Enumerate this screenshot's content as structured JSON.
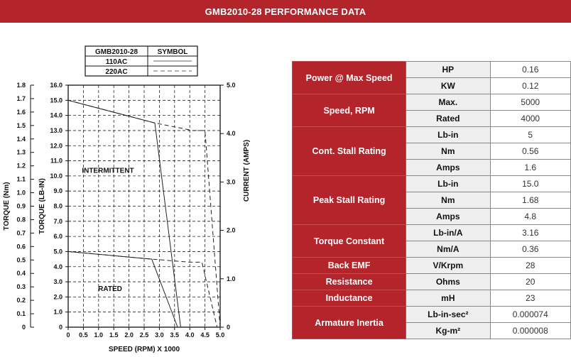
{
  "title": "GMB2010-28 PERFORMANCE DATA",
  "chart_data": {
    "type": "line",
    "xlabel": "SPEED (RPM) X 1000",
    "ylabel_nm": "TORQUE (Nm)",
    "ylabel_lbin": "TORQUE (LB-IN)",
    "ylabel_right": "CURRENT (AMPS)",
    "x_ticks": [
      "0",
      "0.5",
      "1.0",
      "1.5",
      "2.0",
      "2.5",
      "3.0",
      "3.5",
      "4.0",
      "4.5",
      "5.0"
    ],
    "nm_ticks": [
      "1.8",
      "1.7",
      "1.6",
      "1.5",
      "1.4",
      "1.3",
      "1.2",
      "1.1",
      "1.0",
      "0.9",
      "0.8",
      "0.7",
      "0.6",
      "0.5",
      "0.4",
      "0.3",
      "0.2",
      "0.1",
      "0"
    ],
    "lbin_ticks": [
      "16.0",
      "15.0",
      "14.0",
      "13.0",
      "12.0",
      "11.0",
      "10.0",
      "9.0",
      "8.0",
      "7.0",
      "6.0",
      "5.0",
      "4.0",
      "3.0",
      "2.0",
      "1.0",
      "0"
    ],
    "amp_ticks": [
      "5.0",
      "4.0",
      "3.0",
      "2.0",
      "1.0",
      "0"
    ],
    "xlim": [
      0,
      5
    ],
    "ylim_lbin": [
      0,
      16
    ],
    "ylim_amps": [
      0,
      5
    ],
    "legend": {
      "header_model": "GMB2010-28",
      "header_symbol": "SYMBOL",
      "entries": [
        {
          "name": "110AC",
          "style": "solid"
        },
        {
          "name": "220AC",
          "style": "dashed"
        }
      ]
    },
    "annotations": [
      "INTERMITTENT",
      "RATED"
    ],
    "series": [
      {
        "name": "110AC",
        "region": "INTERMITTENT",
        "style": "solid",
        "x": [
          0,
          2.85,
          3.7
        ],
        "y": [
          15.0,
          13.5,
          0
        ]
      },
      {
        "name": "220AC",
        "region": "INTERMITTENT",
        "style": "dashed",
        "x": [
          0,
          2.85,
          4.1,
          4.5,
          5.0
        ],
        "y": [
          15.0,
          13.5,
          13.0,
          13.0,
          0
        ]
      },
      {
        "name": "110AC",
        "region": "RATED",
        "style": "solid",
        "x": [
          0,
          2.75,
          3.6
        ],
        "y": [
          5.0,
          4.5,
          0
        ]
      },
      {
        "name": "220AC",
        "region": "RATED",
        "style": "dashed",
        "x": [
          0,
          2.75,
          4.0,
          4.4,
          4.9
        ],
        "y": [
          5.0,
          4.5,
          4.3,
          4.3,
          0
        ]
      }
    ]
  },
  "table": [
    {
      "group": "Power @ Max Speed",
      "rows": [
        {
          "unit": "HP",
          "value": "0.16"
        },
        {
          "unit": "KW",
          "value": "0.12"
        }
      ]
    },
    {
      "group": "Speed, RPM",
      "rows": [
        {
          "unit": "Max.",
          "value": "5000"
        },
        {
          "unit": "Rated",
          "value": "4000"
        }
      ]
    },
    {
      "group": "Cont. Stall Rating",
      "rows": [
        {
          "unit": "Lb-in",
          "value": "5"
        },
        {
          "unit": "Nm",
          "value": "0.56"
        },
        {
          "unit": "Amps",
          "value": "1.6"
        }
      ]
    },
    {
      "group": "Peak Stall Rating",
      "rows": [
        {
          "unit": "Lb-in",
          "value": "15.0"
        },
        {
          "unit": "Nm",
          "value": "1.68"
        },
        {
          "unit": "Amps",
          "value": "4.8"
        }
      ]
    },
    {
      "group": "Torque Constant",
      "rows": [
        {
          "unit": "Lb-in/A",
          "value": "3.16"
        },
        {
          "unit": "Nm/A",
          "value": "0.36"
        }
      ]
    },
    {
      "group": "Back EMF",
      "rows": [
        {
          "unit": "V/Krpm",
          "value": "28"
        }
      ]
    },
    {
      "group": "Resistance",
      "rows": [
        {
          "unit": "Ohms",
          "value": "20"
        }
      ]
    },
    {
      "group": "Inductance",
      "rows": [
        {
          "unit": "mH",
          "value": "23"
        }
      ]
    },
    {
      "group": "Armature Inertia",
      "rows": [
        {
          "unit": "Lb-in-sec²",
          "value": "0.000074"
        },
        {
          "unit": "Kg-m²",
          "value": "0.000008"
        }
      ]
    }
  ],
  "colors": {
    "accent": "#b4242b",
    "unit_bg": "#efefef"
  }
}
